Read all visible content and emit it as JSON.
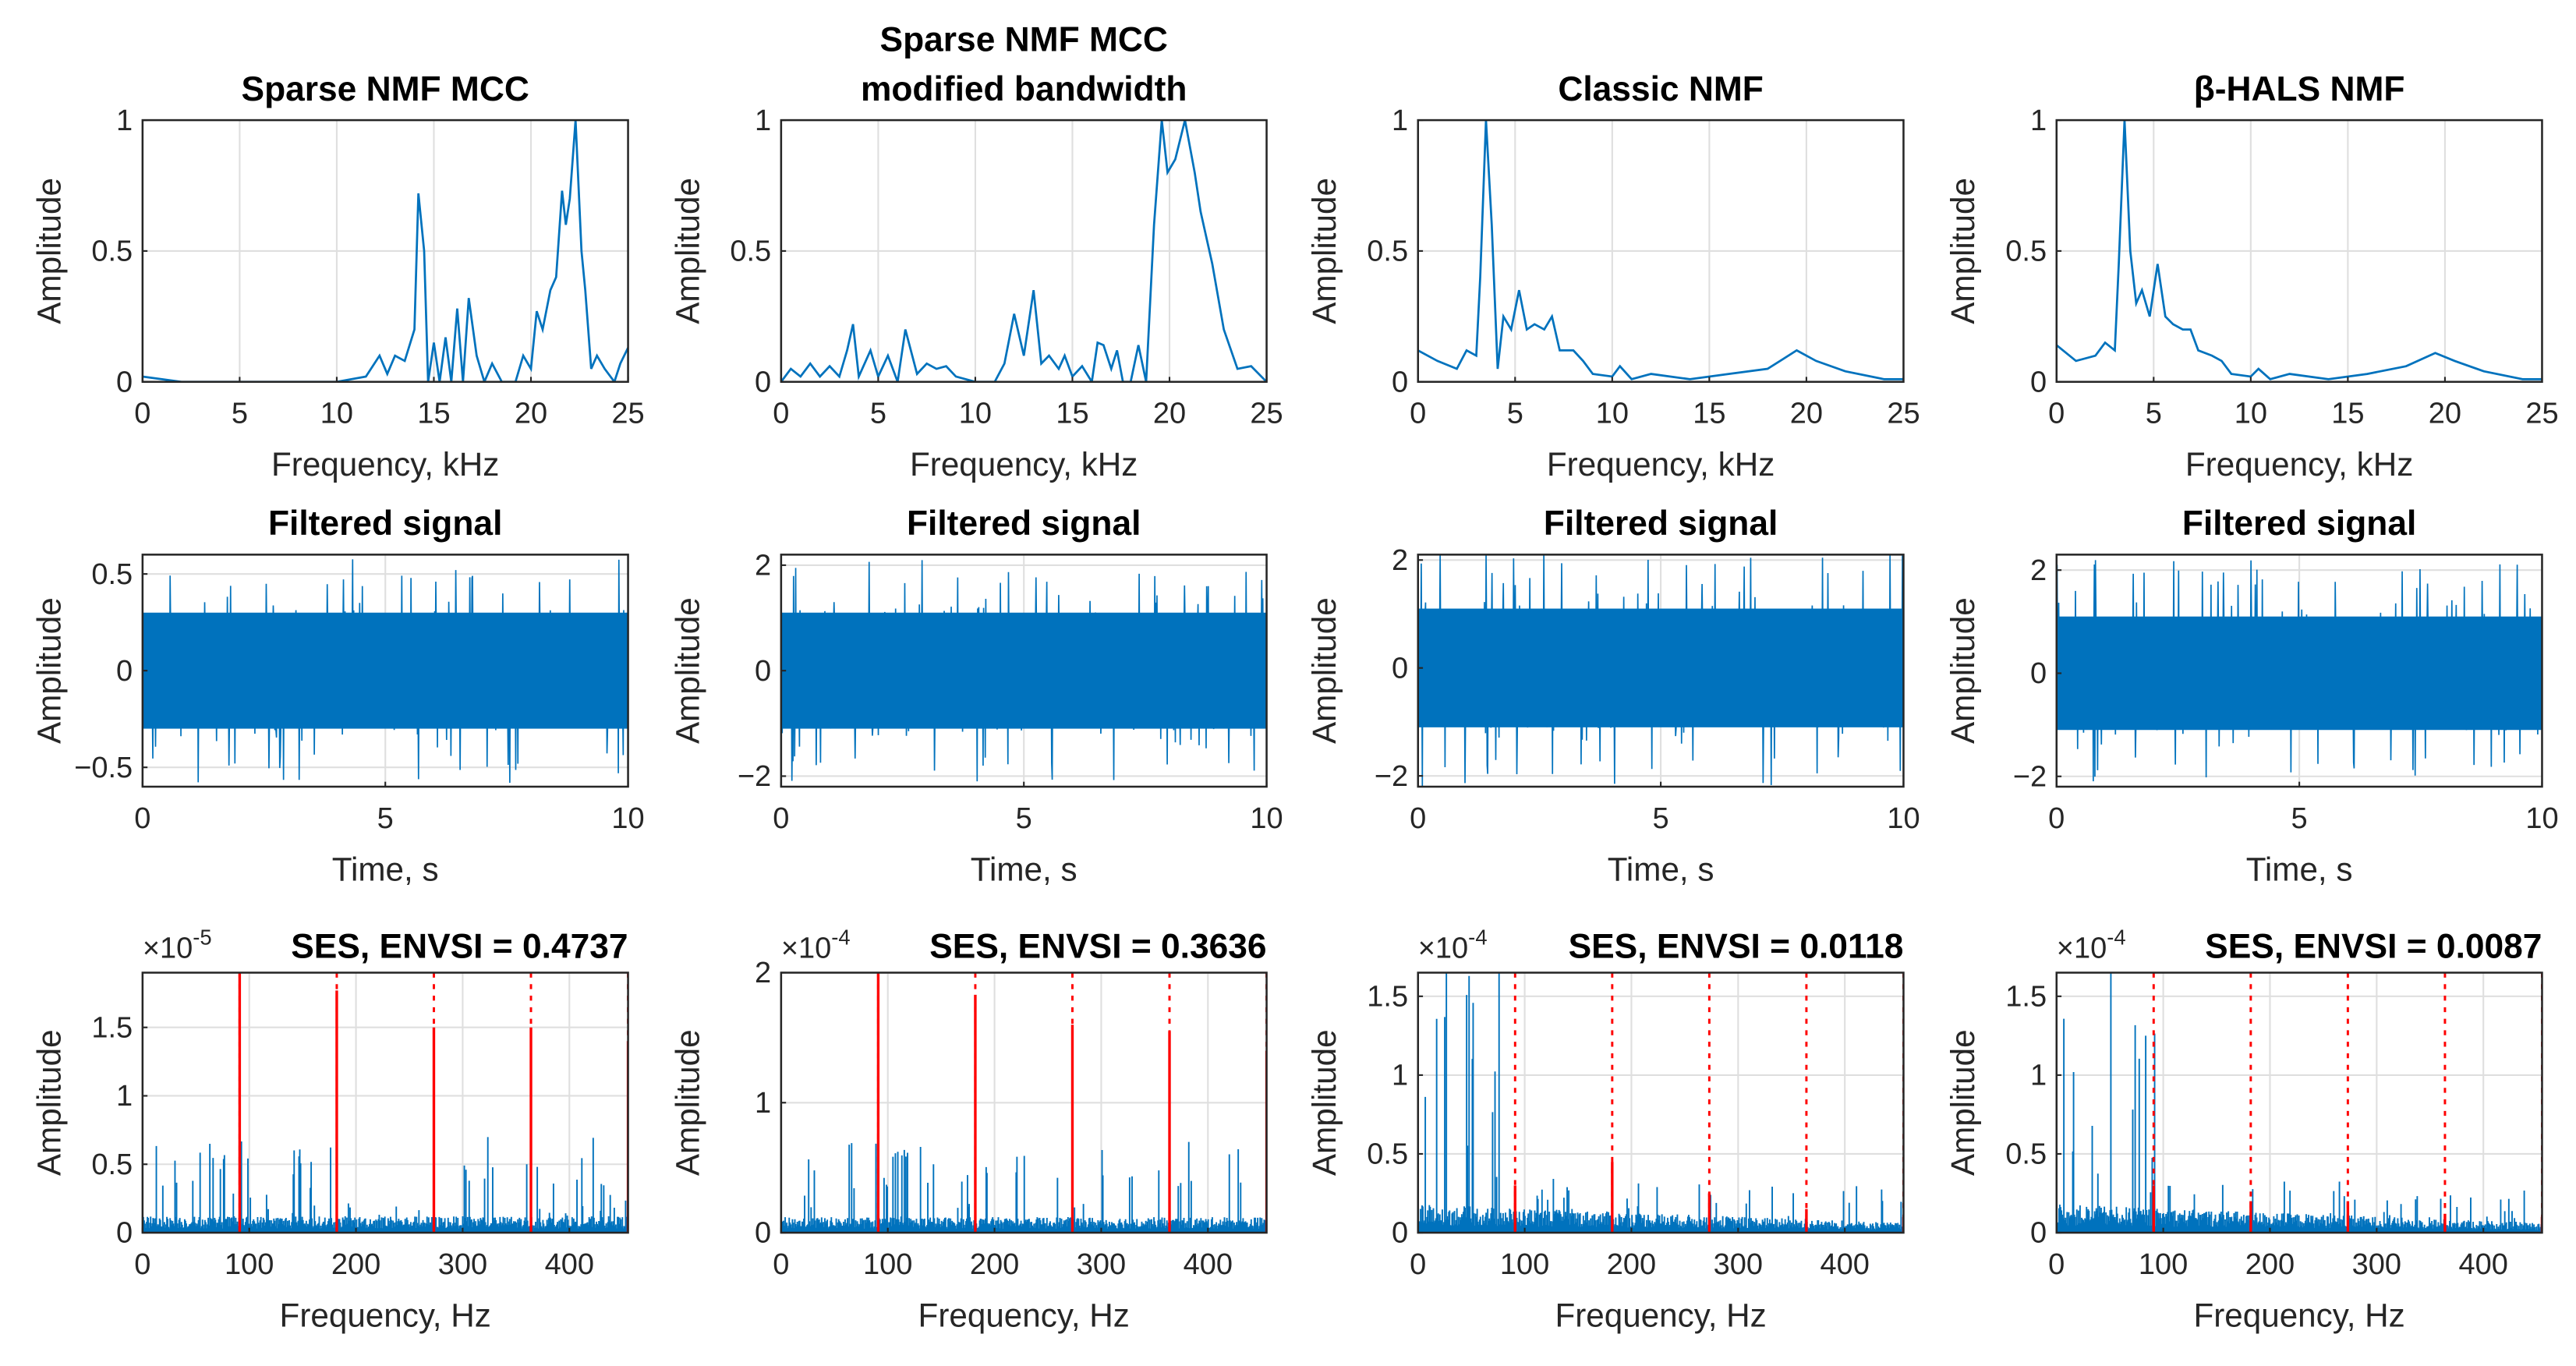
{
  "colors": {
    "series": "#0072BD",
    "harmonic": "#FF0000",
    "grid": "#DFDFDF",
    "axis": "#262626"
  },
  "chart_data": [
    {
      "type": "line",
      "row": "spectrum",
      "title": [
        "Sparse NMF MCC"
      ],
      "xlabel": "Frequency, kHz",
      "ylabel": "Amplitude",
      "xlim": [
        0,
        25
      ],
      "ylim": [
        0,
        1
      ],
      "xticks": [
        0,
        5,
        10,
        15,
        20,
        25
      ],
      "yticks": [
        0,
        0.5,
        1
      ],
      "ytick_labels": [
        "0",
        "0.5",
        "1"
      ],
      "grid": true,
      "points": [
        [
          0,
          0.02
        ],
        [
          1,
          0.01
        ],
        [
          2,
          0
        ],
        [
          10,
          0
        ],
        [
          11.5,
          0.02
        ],
        [
          12.2,
          0.1
        ],
        [
          12.6,
          0.03
        ],
        [
          13,
          0.1
        ],
        [
          13.5,
          0.08
        ],
        [
          14,
          0.2
        ],
        [
          14.2,
          0.72
        ],
        [
          14.5,
          0.5
        ],
        [
          14.7,
          0
        ],
        [
          15,
          0.15
        ],
        [
          15.3,
          0
        ],
        [
          15.6,
          0.17
        ],
        [
          15.9,
          0
        ],
        [
          16.2,
          0.28
        ],
        [
          16.5,
          0
        ],
        [
          16.8,
          0.32
        ],
        [
          17.2,
          0.1
        ],
        [
          17.6,
          0
        ],
        [
          18,
          0.07
        ],
        [
          18.5,
          0
        ],
        [
          19.2,
          0
        ],
        [
          19.6,
          0.1
        ],
        [
          20,
          0.05
        ],
        [
          20.3,
          0.27
        ],
        [
          20.6,
          0.2
        ],
        [
          21,
          0.35
        ],
        [
          21.3,
          0.4
        ],
        [
          21.6,
          0.73
        ],
        [
          21.8,
          0.6
        ],
        [
          22,
          0.7
        ],
        [
          22.3,
          1
        ],
        [
          22.6,
          0.5
        ],
        [
          22.8,
          0.35
        ],
        [
          23.1,
          0.05
        ],
        [
          23.4,
          0.1
        ],
        [
          23.8,
          0.05
        ],
        [
          24.3,
          0
        ],
        [
          24.6,
          0.07
        ],
        [
          25,
          0.13
        ]
      ]
    },
    {
      "type": "line",
      "row": "spectrum",
      "title": [
        "Sparse NMF MCC",
        "modified bandwidth"
      ],
      "xlabel": "Frequency, kHz",
      "ylabel": "Amplitude",
      "xlim": [
        0,
        25
      ],
      "ylim": [
        0,
        1
      ],
      "xticks": [
        0,
        5,
        10,
        15,
        20,
        25
      ],
      "yticks": [
        0,
        0.5,
        1
      ],
      "ytick_labels": [
        "0",
        "0.5",
        "1"
      ],
      "grid": true,
      "points": [
        [
          0,
          0
        ],
        [
          0.5,
          0.05
        ],
        [
          1,
          0.02
        ],
        [
          1.5,
          0.07
        ],
        [
          2,
          0.02
        ],
        [
          2.5,
          0.06
        ],
        [
          3,
          0.02
        ],
        [
          3.4,
          0.12
        ],
        [
          3.7,
          0.22
        ],
        [
          4,
          0.02
        ],
        [
          4.6,
          0.12
        ],
        [
          5,
          0.02
        ],
        [
          5.5,
          0.1
        ],
        [
          6,
          0
        ],
        [
          6.4,
          0.2
        ],
        [
          7,
          0.03
        ],
        [
          7.5,
          0.07
        ],
        [
          8,
          0.05
        ],
        [
          8.5,
          0.06
        ],
        [
          9,
          0.02
        ],
        [
          10,
          0
        ],
        [
          11,
          0
        ],
        [
          11.5,
          0.07
        ],
        [
          12,
          0.26
        ],
        [
          12.5,
          0.1
        ],
        [
          13,
          0.35
        ],
        [
          13.4,
          0.07
        ],
        [
          13.8,
          0.1
        ],
        [
          14.3,
          0.05
        ],
        [
          14.6,
          0.1
        ],
        [
          15,
          0.02
        ],
        [
          15.5,
          0.06
        ],
        [
          16,
          0
        ],
        [
          16.3,
          0.15
        ],
        [
          16.6,
          0.14
        ],
        [
          17,
          0.05
        ],
        [
          17.3,
          0.12
        ],
        [
          17.6,
          0
        ],
        [
          18,
          0
        ],
        [
          18.4,
          0.14
        ],
        [
          18.8,
          0
        ],
        [
          19.2,
          0.6
        ],
        [
          19.6,
          1
        ],
        [
          19.9,
          0.8
        ],
        [
          20.3,
          0.85
        ],
        [
          20.8,
          1
        ],
        [
          21.3,
          0.8
        ],
        [
          21.6,
          0.65
        ],
        [
          22.2,
          0.45
        ],
        [
          22.8,
          0.2
        ],
        [
          23.5,
          0.05
        ],
        [
          24.2,
          0.06
        ],
        [
          25,
          0
        ]
      ]
    },
    {
      "type": "line",
      "row": "spectrum",
      "title": [
        "Classic NMF"
      ],
      "xlabel": "Frequency, kHz",
      "ylabel": "Amplitude",
      "xlim": [
        0,
        25
      ],
      "ylim": [
        0,
        1
      ],
      "xticks": [
        0,
        5,
        10,
        15,
        20,
        25
      ],
      "yticks": [
        0,
        0.5,
        1
      ],
      "ytick_labels": [
        "0",
        "0.5",
        "1"
      ],
      "grid": true,
      "points": [
        [
          0,
          0.12
        ],
        [
          1,
          0.08
        ],
        [
          2,
          0.05
        ],
        [
          2.5,
          0.12
        ],
        [
          3,
          0.1
        ],
        [
          3.2,
          0.4
        ],
        [
          3.5,
          1
        ],
        [
          3.8,
          0.6
        ],
        [
          4.1,
          0.05
        ],
        [
          4.4,
          0.25
        ],
        [
          4.8,
          0.2
        ],
        [
          5.2,
          0.35
        ],
        [
          5.6,
          0.2
        ],
        [
          6,
          0.22
        ],
        [
          6.5,
          0.2
        ],
        [
          6.9,
          0.25
        ],
        [
          7.3,
          0.12
        ],
        [
          8,
          0.12
        ],
        [
          8.5,
          0.08
        ],
        [
          9,
          0.03
        ],
        [
          10,
          0.02
        ],
        [
          10.4,
          0.06
        ],
        [
          11,
          0.01
        ],
        [
          12,
          0.03
        ],
        [
          14,
          0.01
        ],
        [
          16,
          0.03
        ],
        [
          18,
          0.05
        ],
        [
          19.5,
          0.12
        ],
        [
          20.5,
          0.08
        ],
        [
          22,
          0.04
        ],
        [
          24,
          0.01
        ],
        [
          25,
          0.01
        ]
      ]
    },
    {
      "type": "line",
      "row": "spectrum",
      "title": [
        "β-HALS NMF"
      ],
      "xlabel": "Frequency, kHz",
      "ylabel": "Amplitude",
      "xlim": [
        0,
        25
      ],
      "ylim": [
        0,
        1
      ],
      "xticks": [
        0,
        5,
        10,
        15,
        20,
        25
      ],
      "yticks": [
        0,
        0.5,
        1
      ],
      "ytick_labels": [
        "0",
        "0.5",
        "1"
      ],
      "grid": true,
      "points": [
        [
          0,
          0.14
        ],
        [
          1,
          0.08
        ],
        [
          2,
          0.1
        ],
        [
          2.5,
          0.15
        ],
        [
          3,
          0.12
        ],
        [
          3.2,
          0.45
        ],
        [
          3.5,
          1
        ],
        [
          3.8,
          0.5
        ],
        [
          4.1,
          0.3
        ],
        [
          4.4,
          0.35
        ],
        [
          4.8,
          0.25
        ],
        [
          5.2,
          0.45
        ],
        [
          5.6,
          0.25
        ],
        [
          6,
          0.22
        ],
        [
          6.5,
          0.2
        ],
        [
          6.9,
          0.2
        ],
        [
          7.3,
          0.12
        ],
        [
          8,
          0.1
        ],
        [
          8.5,
          0.08
        ],
        [
          9,
          0.03
        ],
        [
          10,
          0.02
        ],
        [
          10.4,
          0.05
        ],
        [
          11,
          0.01
        ],
        [
          12,
          0.03
        ],
        [
          14,
          0.01
        ],
        [
          16,
          0.03
        ],
        [
          18,
          0.06
        ],
        [
          19.5,
          0.11
        ],
        [
          20.5,
          0.08
        ],
        [
          22,
          0.04
        ],
        [
          24,
          0.01
        ],
        [
          25,
          0.01
        ]
      ]
    },
    {
      "type": "line",
      "row": "signal",
      "title": [
        "Filtered signal"
      ],
      "xlabel": "Time, s",
      "ylabel": "Amplitude",
      "xlim": [
        0,
        10
      ],
      "ylim": [
        -0.6,
        0.6
      ],
      "xticks": [
        0,
        5,
        10
      ],
      "yticks": [
        -0.5,
        0,
        0.5
      ],
      "ytick_labels": [
        "−0.5",
        "0",
        "0.5"
      ],
      "grid": true,
      "noise_rms": 0.15,
      "peak_abs": 0.58
    },
    {
      "type": "line",
      "row": "signal",
      "title": [
        "Filtered signal"
      ],
      "xlabel": "Time, s",
      "ylabel": "Amplitude",
      "xlim": [
        0,
        10
      ],
      "ylim": [
        -2.2,
        2.2
      ],
      "xticks": [
        0,
        5,
        10
      ],
      "yticks": [
        -2,
        0,
        2
      ],
      "ytick_labels": [
        "−2",
        "0",
        "2"
      ],
      "grid": true,
      "noise_rms": 0.55,
      "peak_abs": 2.1
    },
    {
      "type": "line",
      "row": "signal",
      "title": [
        "Filtered signal"
      ],
      "xlabel": "Time, s",
      "ylabel": "Amplitude",
      "xlim": [
        0,
        10
      ],
      "ylim": [
        -2.2,
        2.1
      ],
      "xticks": [
        0,
        5,
        10
      ],
      "yticks": [
        -2,
        0,
        2
      ],
      "ytick_labels": [
        "−2",
        "0",
        "2"
      ],
      "grid": true,
      "noise_rms": 0.55,
      "peak_abs": 2.2
    },
    {
      "type": "line",
      "row": "signal",
      "title": [
        "Filtered signal"
      ],
      "xlabel": "Time, s",
      "ylabel": "Amplitude",
      "xlim": [
        0,
        10
      ],
      "ylim": [
        -2.2,
        2.3
      ],
      "xticks": [
        0,
        5,
        10
      ],
      "yticks": [
        -2,
        0,
        2
      ],
      "ytick_labels": [
        "−2",
        "0",
        "2"
      ],
      "grid": true,
      "noise_rms": 0.55,
      "peak_abs": 2.2
    },
    {
      "type": "line",
      "row": "ses",
      "title": [
        "SES, ENVSI = 0.4737"
      ],
      "exponent_label": "×10",
      "exponent": "-5",
      "xlabel": "Frequency, Hz",
      "ylabel": "Amplitude",
      "xlim": [
        0,
        455
      ],
      "ylim": [
        0,
        1.9
      ],
      "xticks": [
        0,
        100,
        200,
        300,
        400
      ],
      "yticks": [
        0,
        0.5,
        1,
        1.5
      ],
      "ytick_labels": [
        "0",
        "0.5",
        "1",
        "1.5"
      ],
      "grid": true,
      "harmonics_hz": [
        91,
        182,
        273,
        364,
        455
      ],
      "harmonic_heights": [
        1.9,
        1.77,
        1.5,
        1.5,
        1.4
      ],
      "noise_floor": 0.1,
      "spike_max": 0.75
    },
    {
      "type": "line",
      "row": "ses",
      "title": [
        "SES, ENVSI = 0.3636"
      ],
      "exponent_label": "×10",
      "exponent": "-4",
      "xlabel": "Frequency, Hz",
      "ylabel": "Amplitude",
      "xlim": [
        0,
        455
      ],
      "ylim": [
        0,
        2
      ],
      "xticks": [
        0,
        100,
        200,
        300,
        400
      ],
      "yticks": [
        0,
        1,
        2
      ],
      "ytick_labels": [
        "0",
        "1",
        "2"
      ],
      "grid": true,
      "harmonics_hz": [
        91,
        182,
        273,
        364,
        455
      ],
      "harmonic_heights": [
        2,
        1.83,
        1.6,
        1.55,
        1.4
      ],
      "noise_floor": 0.1,
      "spike_max": 0.75
    },
    {
      "type": "line",
      "row": "ses",
      "title": [
        "SES, ENVSI = 0.0118"
      ],
      "exponent_label": "×10",
      "exponent": "-4",
      "xlabel": "Frequency, Hz",
      "ylabel": "Amplitude",
      "xlim": [
        0,
        455
      ],
      "ylim": [
        0,
        1.65
      ],
      "xticks": [
        0,
        100,
        200,
        300,
        400
      ],
      "yticks": [
        0,
        0.5,
        1,
        1.5
      ],
      "ytick_labels": [
        "0",
        "0.5",
        "1",
        "1.5"
      ],
      "grid": true,
      "harmonics_hz": [
        91,
        182,
        273,
        364,
        455
      ],
      "harmonic_heights": [
        0.3,
        0.45,
        0.25,
        0.15,
        0.1
      ],
      "noise_floor": 0.15,
      "spike_max": 1.65,
      "decaying": true
    },
    {
      "type": "line",
      "row": "ses",
      "title": [
        "SES, ENVSI = 0.0087"
      ],
      "exponent_label": "×10",
      "exponent": "-4",
      "xlabel": "Frequency, Hz",
      "ylabel": "Amplitude",
      "xlim": [
        0,
        455
      ],
      "ylim": [
        0,
        1.65
      ],
      "xticks": [
        0,
        100,
        200,
        300,
        400
      ],
      "yticks": [
        0,
        0.5,
        1,
        1.5
      ],
      "ytick_labels": [
        "0",
        "0.5",
        "1",
        "1.5"
      ],
      "grid": true,
      "harmonics_hz": [
        91,
        182,
        273,
        364,
        455
      ],
      "harmonic_heights": [
        0.3,
        0.2,
        0.2,
        0.12,
        0.1
      ],
      "noise_floor": 0.15,
      "spike_max": 1.65,
      "decaying": true
    }
  ]
}
